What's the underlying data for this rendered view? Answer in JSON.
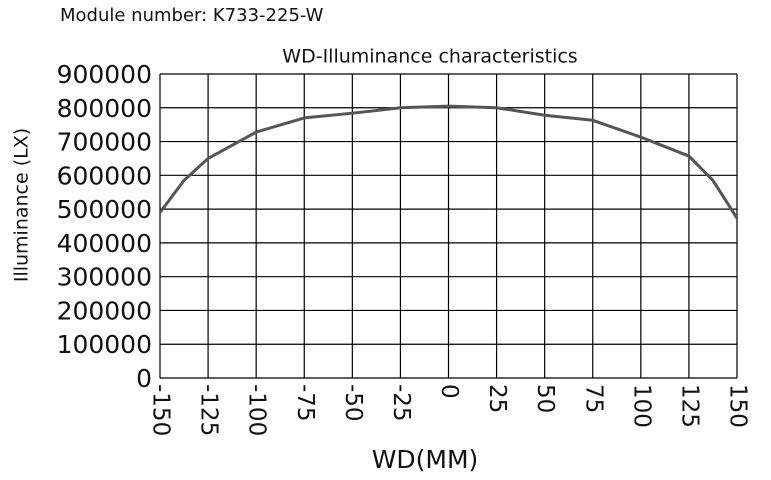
{
  "chart_data": {
    "type": "line",
    "subtitle": "Module number: K733-225-W",
    "title": "WD-Illuminance characteristics",
    "x_label": "WD(MM)",
    "y_label": "Illuminance (LX)",
    "x": [
      -150,
      -137.5,
      -125,
      -100,
      -75,
      -50,
      -25,
      0,
      25,
      50,
      75,
      100,
      125,
      137.5,
      150
    ],
    "series": [
      {
        "name": "Illuminance",
        "color": "#555555",
        "values": [
          490000,
          585000,
          650000,
          728000,
          770000,
          784000,
          800000,
          805000,
          800000,
          778000,
          763000,
          713000,
          657000,
          585000,
          473000
        ]
      }
    ],
    "xlim": [
      -150,
      150
    ],
    "xticks": [
      -150,
      -125,
      -100,
      -75,
      -50,
      -25,
      0,
      25,
      50,
      75,
      100,
      125,
      150
    ],
    "ylim": [
      0,
      900000
    ],
    "yticks": [
      0,
      100000,
      200000,
      300000,
      400000,
      500000,
      600000,
      700000,
      800000,
      900000
    ],
    "grid": true
  }
}
